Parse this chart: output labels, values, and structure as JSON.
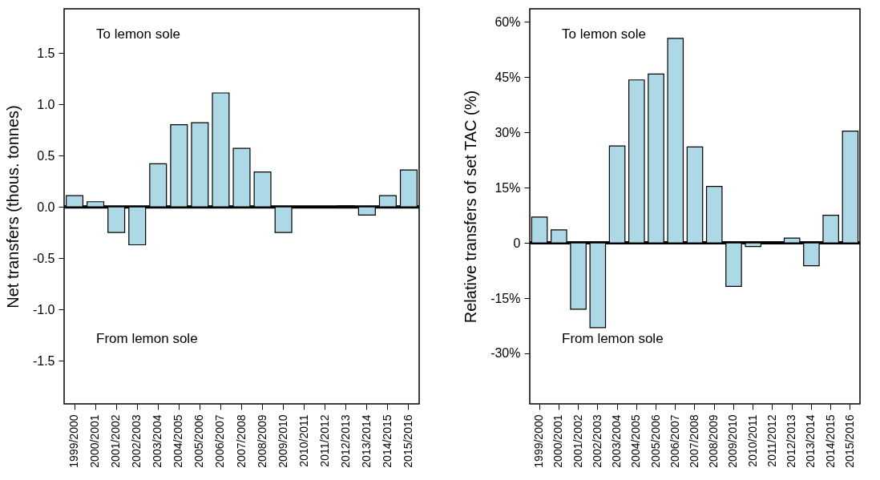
{
  "chart_data": [
    {
      "type": "bar",
      "ylabel": "Net transfers (thous. tonnes)",
      "categories": [
        "1999/2000",
        "2000/2001",
        "2001/2002",
        "2002/2003",
        "2003/2004",
        "2004/2005",
        "2005/2006",
        "2006/2007",
        "2007/2008",
        "2008/2009",
        "2009/2010",
        "2010/2011",
        "2011/2012",
        "2012/2013",
        "2013/2014",
        "2014/2015",
        "2015/2016"
      ],
      "values": [
        0.11,
        0.05,
        -0.25,
        -0.37,
        0.42,
        0.8,
        0.82,
        1.11,
        0.57,
        0.34,
        -0.25,
        null,
        null,
        0.01,
        -0.08,
        0.11,
        0.36
      ],
      "color": "#add8e6",
      "ylim": [
        -1.92,
        1.93
      ],
      "yticks": [
        {
          "value": -1.5,
          "label": "-1.5"
        },
        {
          "value": -1,
          "label": "-1.0"
        },
        {
          "value": -0.5,
          "label": "-0.5"
        },
        {
          "value": 0,
          "label": "0.0"
        },
        {
          "value": 0.5,
          "label": "0.5"
        },
        {
          "value": 1,
          "label": "1.0"
        },
        {
          "value": 1.5,
          "label": "1.5"
        }
      ],
      "ref_lines": [
        {
          "axis": "y",
          "value": 0,
          "color": "#000000"
        }
      ],
      "annotations": [
        "To lemon sole",
        "From lemon sole"
      ],
      "grid": false
    },
    {
      "type": "bar",
      "ylabel": "Relative transfers of set TAC (%)",
      "categories": [
        "1999/2000",
        "2000/2001",
        "2001/2002",
        "2002/2003",
        "2003/2004",
        "2004/2005",
        "2005/2006",
        "2006/2007",
        "2007/2008",
        "2008/2009",
        "2009/2010",
        "2010/2011",
        "2011/2012",
        "2012/2013",
        "2013/2014",
        "2014/2015",
        "2015/2016"
      ],
      "values": [
        7,
        3.5,
        -18,
        -23,
        26.3,
        44.2,
        45.8,
        55.5,
        26,
        15.3,
        -11.8,
        -1,
        null,
        1.3,
        -6.2,
        7.5,
        30.3
      ],
      "color": "#add8e6",
      "ylim": [
        -43.7,
        63.5
      ],
      "yticks": [
        {
          "value": -30,
          "label": "-30%"
        },
        {
          "value": -15,
          "label": "-15%"
        },
        0,
        {
          "value": 15,
          "label": "15%"
        },
        {
          "value": 30,
          "label": "30%"
        },
        {
          "value": 45,
          "label": "45%"
        },
        {
          "value": 60,
          "label": "60%"
        }
      ],
      "ref_lines": [
        {
          "axis": "y",
          "value": 0,
          "color": "#000000"
        }
      ],
      "annotations": [
        "To lemon sole",
        "From lemon sole"
      ],
      "grid": false
    }
  ]
}
